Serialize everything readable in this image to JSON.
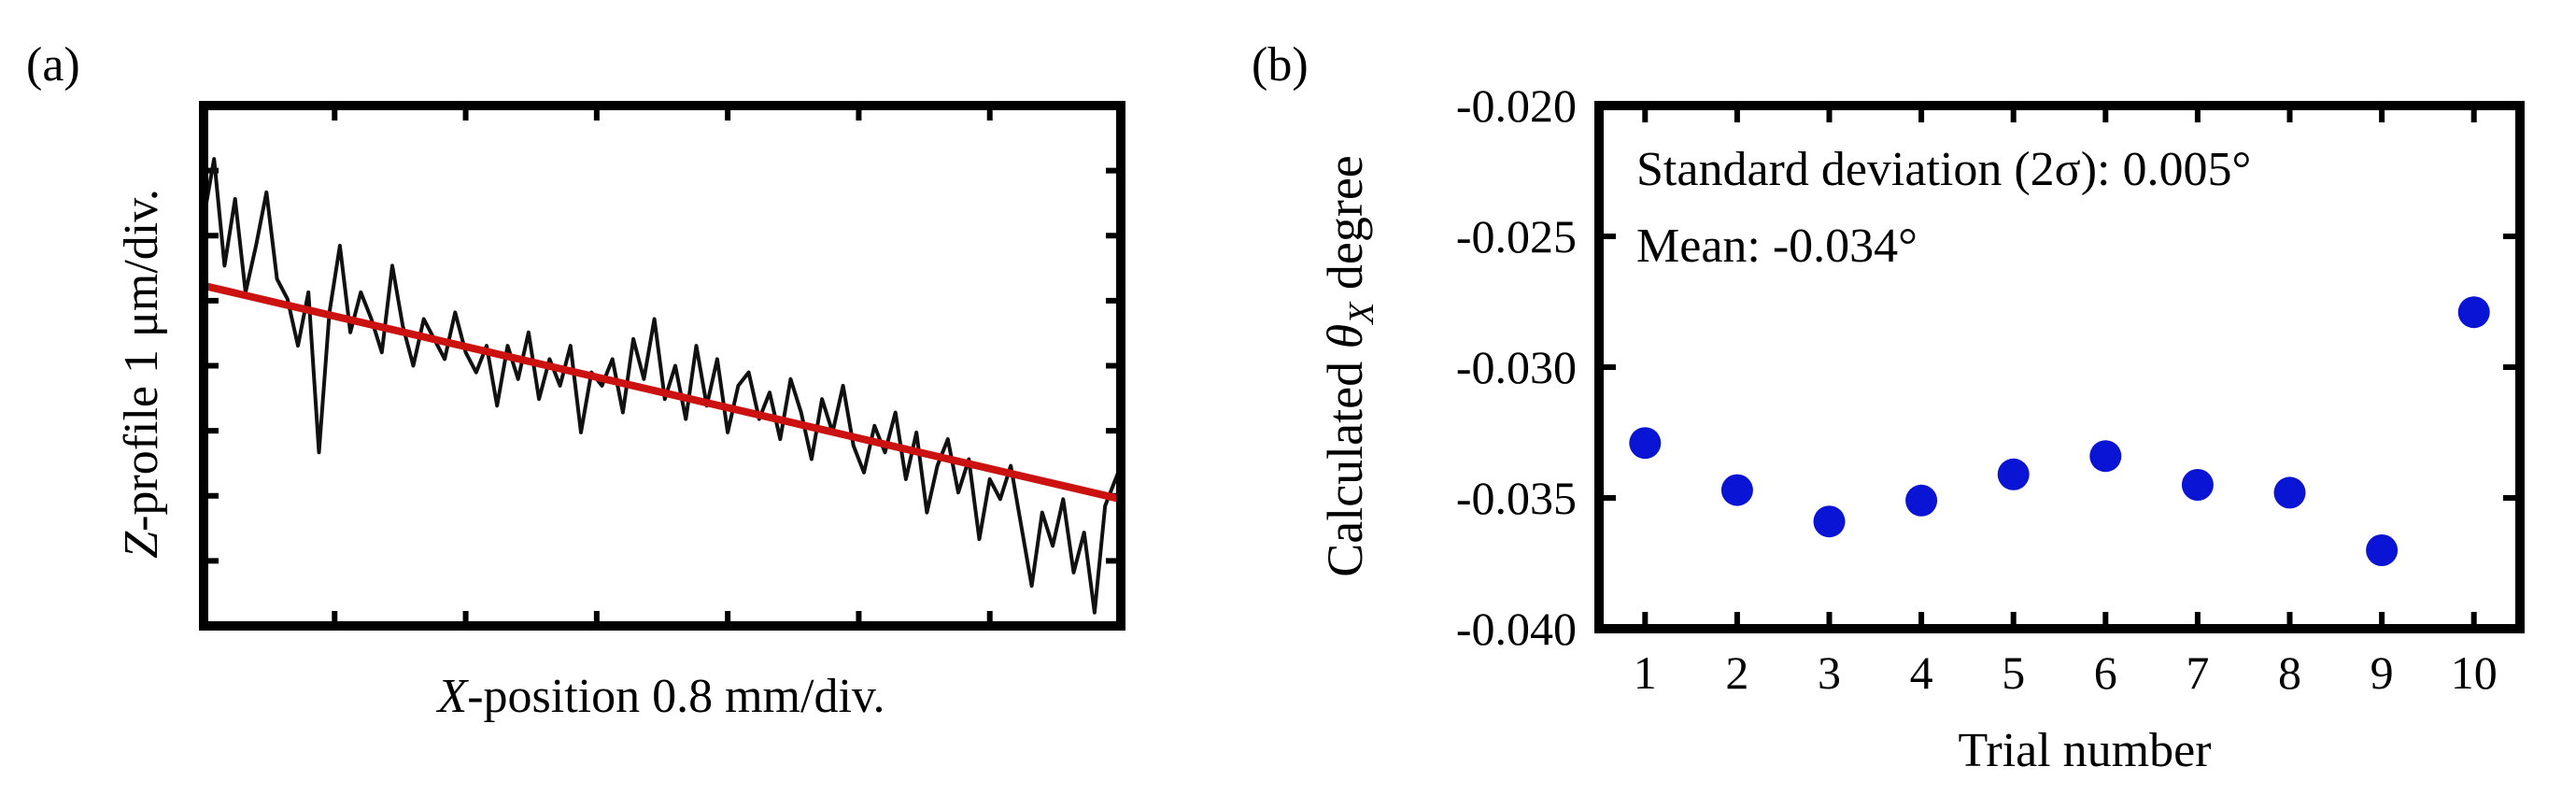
{
  "colors": {
    "frame": "#000000",
    "profile_line": "#111111",
    "fit_line": "#cc1111",
    "points": "#0a14d4"
  },
  "chart_data": [
    {
      "panel": "(a)",
      "type": "line",
      "title": "",
      "xlabel_var": "X",
      "xlabel_rest": "-position 0.8 mm/div.",
      "ylabel_var": "Z",
      "ylabel_rest": "-profile  1 μm/div.",
      "xlim": [
        0,
        7
      ],
      "ylim": [
        -4.8,
        3
      ],
      "x_divisions": 7,
      "y_divisions": 8,
      "grid": false,
      "series": [
        {
          "name": "Z-profile",
          "kind": "profile",
          "x": [
            0,
            0.08,
            0.16,
            0.24,
            0.32,
            0.4,
            0.48,
            0.56,
            0.64,
            0.72,
            0.8,
            0.88,
            0.96,
            1.04,
            1.12,
            1.2,
            1.28,
            1.36,
            1.44,
            1.52,
            1.6,
            1.68,
            1.76,
            1.84,
            1.92,
            2.0,
            2.08,
            2.16,
            2.24,
            2.32,
            2.4,
            2.48,
            2.56,
            2.64,
            2.72,
            2.8,
            2.88,
            2.96,
            3.04,
            3.12,
            3.2,
            3.28,
            3.36,
            3.44,
            3.52,
            3.6,
            3.68,
            3.76,
            3.84,
            3.92,
            4.0,
            4.08,
            4.16,
            4.24,
            4.32,
            4.4,
            4.48,
            4.56,
            4.64,
            4.72,
            4.8,
            4.88,
            4.96,
            5.04,
            5.12,
            5.2,
            5.28,
            5.36,
            5.44,
            5.52,
            5.6,
            5.68,
            5.76,
            5.84,
            5.92,
            6.0,
            6.08,
            6.16,
            6.24,
            6.32,
            6.4,
            6.48,
            6.56,
            6.64,
            6.72,
            6.8,
            6.88,
            7.0
          ],
          "y": [
            1.3,
            2.2,
            0.6,
            1.6,
            0.2,
            0.9,
            1.7,
            0.4,
            0.1,
            -0.6,
            0.2,
            -2.2,
            -0.1,
            0.9,
            -0.4,
            0.2,
            -0.2,
            -0.7,
            0.6,
            -0.3,
            -0.9,
            -0.2,
            -0.5,
            -0.8,
            -0.1,
            -0.7,
            -1.0,
            -0.6,
            -1.5,
            -0.6,
            -1.1,
            -0.4,
            -1.4,
            -0.8,
            -1.2,
            -0.6,
            -1.9,
            -1.0,
            -1.2,
            -0.8,
            -1.6,
            -0.5,
            -1.1,
            -0.2,
            -1.4,
            -0.9,
            -1.7,
            -0.6,
            -1.5,
            -0.8,
            -1.9,
            -1.2,
            -1.0,
            -1.7,
            -1.3,
            -2.0,
            -1.1,
            -1.6,
            -2.3,
            -1.4,
            -1.9,
            -1.2,
            -2.1,
            -2.5,
            -1.8,
            -2.2,
            -1.6,
            -2.6,
            -1.9,
            -3.1,
            -2.4,
            -2.0,
            -2.8,
            -2.3,
            -3.5,
            -2.6,
            -2.9,
            -2.4,
            -3.3,
            -4.2,
            -3.1,
            -3.6,
            -2.9,
            -4.0,
            -3.4,
            -4.6,
            -3.0,
            -2.4
          ]
        },
        {
          "name": "Linear fit",
          "kind": "fit",
          "x": [
            0,
            7
          ],
          "y": [
            0.3,
            -2.9
          ]
        }
      ]
    },
    {
      "panel": "(b)",
      "type": "scatter",
      "title": "",
      "xlabel": "Trial number",
      "ylabel_prefix": "Calculated ",
      "ylabel_symbol": "θ",
      "ylabel_subscript": "X",
      "ylabel_suffix": " degree",
      "annotation_line1": "Standard deviation (2σ): 0.005°",
      "annotation_line2": "Mean: -0.034°",
      "xlim": [
        0.5,
        10.5
      ],
      "ylim": [
        -0.04,
        -0.02
      ],
      "x_ticks": [
        "1",
        "2",
        "3",
        "4",
        "5",
        "6",
        "7",
        "8",
        "9",
        "10"
      ],
      "y_ticks": [
        "-0.020",
        "-0.025",
        "-0.030",
        "-0.035",
        "-0.040"
      ],
      "y_tick_values": [
        -0.02,
        -0.025,
        -0.03,
        -0.035,
        -0.04
      ],
      "grid": false,
      "series": [
        {
          "name": "Calculated θX",
          "x": [
            1,
            2,
            3,
            4,
            5,
            6,
            7,
            8,
            9,
            10
          ],
          "y": [
            -0.0329,
            -0.0347,
            -0.0359,
            -0.0351,
            -0.0341,
            -0.0334,
            -0.0345,
            -0.0348,
            -0.037,
            -0.0279
          ]
        }
      ]
    }
  ]
}
